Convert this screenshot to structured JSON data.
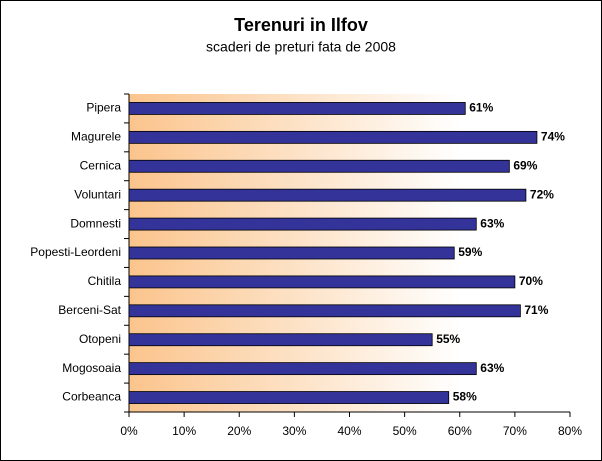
{
  "chart_data": {
    "type": "bar",
    "orientation": "horizontal",
    "title": "Terenuri in Ilfov",
    "subtitle": "scaderi de preturi fata de 2008",
    "categories": [
      "Pipera",
      "Magurele",
      "Cernica",
      "Voluntari",
      "Domnesti",
      "Popesti-Leordeni",
      "Chitila",
      "Berceni-Sat",
      "Otopeni",
      "Mogosoaia",
      "Corbeanca"
    ],
    "values": [
      61,
      74,
      69,
      72,
      63,
      59,
      70,
      71,
      55,
      63,
      58
    ],
    "value_labels": [
      "61%",
      "74%",
      "69%",
      "72%",
      "63%",
      "59%",
      "70%",
      "71%",
      "55%",
      "63%",
      "58%"
    ],
    "color": "#333399",
    "xlim": [
      0,
      80
    ],
    "xticks": [
      {
        "value": 0,
        "label": "0%"
      },
      {
        "value": 10,
        "label": "10%"
      },
      {
        "value": 20,
        "label": "20%"
      },
      {
        "value": 30,
        "label": "30%"
      },
      {
        "value": 40,
        "label": "40%"
      },
      {
        "value": 50,
        "label": "50%"
      },
      {
        "value": 60,
        "label": "60%"
      },
      {
        "value": 70,
        "label": "70%"
      },
      {
        "value": 80,
        "label": "80%"
      }
    ],
    "grid": false
  }
}
